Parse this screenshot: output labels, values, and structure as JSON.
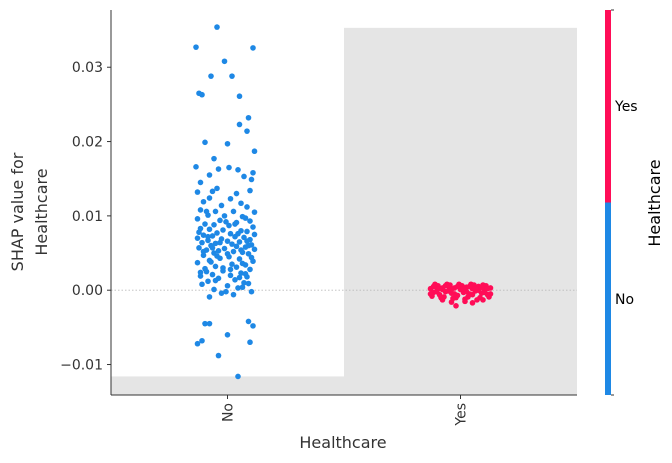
{
  "chart_data": {
    "type": "scatter",
    "title": "",
    "xlabel": "Healthcare",
    "ylabel_lines": [
      "SHAP value for",
      "Healthcare"
    ],
    "categories": [
      "No",
      "Yes"
    ],
    "ylim": [
      -0.0141,
      0.0377
    ],
    "yticks": [
      -0.01,
      0.0,
      0.01,
      0.02,
      0.03
    ],
    "ytick_labels": [
      "−0.01",
      "0.00",
      "0.01",
      "0.02",
      "0.03"
    ],
    "zero_line": true,
    "histogram_bands": [
      {
        "category": "No",
        "from": -0.0141,
        "to": -0.0116
      },
      {
        "category": "Yes",
        "from": -0.0141,
        "to": 0.0353
      }
    ],
    "colorbar": {
      "title": "Healthcare",
      "labels": [
        "Yes",
        "No"
      ],
      "high_color": "#ff0d57",
      "low_color": "#1e88e5"
    },
    "series": [
      {
        "category": "No",
        "color": "#1e88e5",
        "points": [
          [
            -0.035,
            0.0354
          ],
          [
            -0.105,
            0.0327
          ],
          [
            0.085,
            0.0326
          ],
          [
            -0.01,
            0.0308
          ],
          [
            -0.055,
            0.0288
          ],
          [
            0.015,
            0.0288
          ],
          [
            0.04,
            0.0261
          ],
          [
            -0.095,
            0.0265
          ],
          [
            -0.085,
            0.0263
          ],
          [
            0.07,
            0.0232
          ],
          [
            0.04,
            0.0223
          ],
          [
            0.065,
            0.0214
          ],
          [
            -0.075,
            0.0199
          ],
          [
            0.0,
            0.0197
          ],
          [
            0.09,
            0.0187
          ],
          [
            -0.045,
            0.0177
          ],
          [
            -0.105,
            0.0166
          ],
          [
            0.005,
            0.0165
          ],
          [
            -0.03,
            0.0163
          ],
          [
            0.035,
            0.0162
          ],
          [
            0.085,
            0.0158
          ],
          [
            -0.06,
            0.0155
          ],
          [
            0.055,
            0.0153
          ],
          [
            0.08,
            0.0149
          ],
          [
            -0.09,
            0.0145
          ],
          [
            -0.035,
            0.0137
          ],
          [
            0.075,
            0.0134
          ],
          [
            -0.1,
            0.0132
          ],
          [
            -0.05,
            0.0133
          ],
          [
            0.03,
            0.013
          ],
          [
            -0.06,
            0.0124
          ],
          [
            0.01,
            0.0123
          ],
          [
            -0.08,
            0.0119
          ],
          [
            0.045,
            0.0117
          ],
          [
            -0.02,
            0.0114
          ],
          [
            0.065,
            0.0112
          ],
          [
            -0.09,
            0.0108
          ],
          [
            -0.04,
            0.0106
          ],
          [
            0.02,
            0.0106
          ],
          [
            0.09,
            0.0105
          ],
          [
            -0.065,
            0.0101
          ],
          [
            -0.01,
            0.01
          ],
          [
            0.05,
            0.0099
          ],
          [
            -0.1,
            0.0096
          ],
          [
            -0.025,
            0.0094
          ],
          [
            0.075,
            0.0093
          ],
          [
            0.03,
            0.0091
          ],
          [
            -0.075,
            0.0089
          ],
          [
            -0.045,
            0.0088
          ],
          [
            0.005,
            0.0087
          ],
          [
            0.085,
            0.0085
          ],
          [
            -0.09,
            0.0083
          ],
          [
            -0.06,
            0.0082
          ],
          [
            -0.015,
            0.0081
          ],
          [
            0.045,
            0.008
          ],
          [
            0.065,
            0.0079
          ],
          [
            -0.035,
            0.0077
          ],
          [
            0.01,
            0.0076
          ],
          [
            0.09,
            0.0075
          ],
          [
            -0.08,
            0.0074
          ],
          [
            -0.05,
            0.0073
          ],
          [
            0.025,
            0.0072
          ],
          [
            0.055,
            0.0071
          ],
          [
            -0.1,
            0.007
          ],
          [
            -0.02,
            0.0069
          ],
          [
            0.075,
            0.0068
          ],
          [
            -0.065,
            0.0067
          ],
          [
            0.0,
            0.0066
          ],
          [
            0.04,
            0.0065
          ],
          [
            -0.085,
            0.0064
          ],
          [
            -0.04,
            0.0063
          ],
          [
            0.015,
            0.0062
          ],
          [
            0.08,
            0.0061
          ],
          [
            -0.055,
            0.006
          ],
          [
            0.03,
            0.0059
          ],
          [
            0.06,
            0.0058
          ],
          [
            -0.095,
            0.0057
          ],
          [
            -0.01,
            0.0056
          ],
          [
            0.09,
            0.0055
          ],
          [
            -0.07,
            0.0054
          ],
          [
            -0.03,
            0.0053
          ],
          [
            0.02,
            0.0052
          ],
          [
            0.05,
            0.0051
          ],
          [
            -0.045,
            0.005
          ],
          [
            0.07,
            0.0049
          ],
          [
            -0.08,
            0.0047
          ],
          [
            0.005,
            0.0045
          ],
          [
            -0.025,
            0.0043
          ],
          [
            0.04,
            0.0042
          ],
          [
            -0.06,
            0.004
          ],
          [
            0.085,
            0.0039
          ],
          [
            -0.1,
            0.0037
          ],
          [
            0.015,
            0.0035
          ],
          [
            0.06,
            0.0034
          ],
          [
            -0.04,
            0.0032
          ],
          [
            0.03,
            0.0031
          ],
          [
            -0.075,
            0.0029
          ],
          [
            0.075,
            0.0028
          ],
          [
            -0.015,
            0.0026
          ],
          [
            -0.09,
            0.0024
          ],
          [
            0.045,
            0.0023
          ],
          [
            -0.05,
            0.0021
          ],
          [
            0.01,
            0.002
          ],
          [
            0.065,
            0.0018
          ],
          [
            -0.03,
            0.0016
          ],
          [
            0.025,
            0.0014
          ],
          [
            -0.065,
            0.0012
          ],
          [
            0.055,
            0.001
          ],
          [
            -0.085,
            0.0008
          ],
          [
            0.0,
            0.0006
          ],
          [
            0.035,
            0.0003
          ],
          [
            -0.045,
            0.0001
          ],
          [
            0.08,
            -0.0002
          ],
          [
            -0.02,
            -0.0004
          ],
          [
            0.02,
            -0.0006
          ],
          [
            -0.06,
            -0.0009
          ],
          [
            0.05,
            0.0004
          ],
          [
            -0.005,
            -0.0002
          ],
          [
            -0.075,
            -0.0045
          ],
          [
            -0.06,
            -0.0045
          ],
          [
            0.07,
            -0.0042
          ],
          [
            0.085,
            -0.0048
          ],
          [
            0.0,
            -0.006
          ],
          [
            -0.085,
            -0.0068
          ],
          [
            -0.1,
            -0.0072
          ],
          [
            0.075,
            -0.007
          ],
          [
            -0.03,
            -0.0088
          ],
          [
            0.035,
            -0.0116
          ],
          [
            -0.07,
            0.0106
          ],
          [
            0.06,
            0.0097
          ],
          [
            -0.005,
            0.0092
          ],
          [
            0.025,
            0.0089
          ],
          [
            -0.095,
            0.0078
          ],
          [
            0.035,
            0.0076
          ],
          [
            -0.065,
            0.0072
          ],
          [
            0.065,
            0.0066
          ],
          [
            -0.025,
            0.0064
          ],
          [
            0.07,
            0.006
          ],
          [
            -0.05,
            0.0057
          ],
          [
            0.045,
            0.0054
          ],
          [
            -0.08,
            0.0052
          ],
          [
            0.0,
            0.0049
          ],
          [
            -0.035,
            0.0046
          ],
          [
            0.08,
            0.0044
          ],
          [
            -0.055,
            0.0038
          ],
          [
            0.05,
            0.0036
          ],
          [
            -0.015,
            0.003
          ],
          [
            0.01,
            0.0028
          ],
          [
            -0.07,
            0.0025
          ],
          [
            0.06,
            0.0022
          ],
          [
            -0.09,
            0.0019
          ],
          [
            0.04,
            0.0017
          ],
          [
            -0.04,
            0.0013
          ],
          [
            0.07,
            0.0009
          ]
        ]
      },
      {
        "category": "Yes",
        "color": "#ff0d57",
        "points": [
          [
            -0.1,
            0.0002
          ],
          [
            -0.09,
            -0.0003
          ],
          [
            -0.08,
            0.0004
          ],
          [
            -0.07,
            -0.0006
          ],
          [
            -0.06,
            0.0001
          ],
          [
            -0.05,
            -0.0002
          ],
          [
            -0.04,
            0.0005
          ],
          [
            -0.03,
            -0.0004
          ],
          [
            -0.02,
            0.0003
          ],
          [
            -0.01,
            -0.0007
          ],
          [
            0.0,
            0.0001
          ],
          [
            0.01,
            -0.0003
          ],
          [
            0.02,
            0.0004
          ],
          [
            0.03,
            -0.0005
          ],
          [
            0.04,
            0.0002
          ],
          [
            0.05,
            -0.0001
          ],
          [
            0.06,
            0.0005
          ],
          [
            0.07,
            -0.0004
          ],
          [
            0.08,
            0.0001
          ],
          [
            0.09,
            -0.0006
          ],
          [
            0.1,
            0.0003
          ],
          [
            -0.095,
            -0.0008
          ],
          [
            -0.075,
            0.0006
          ],
          [
            -0.055,
            -0.0009
          ],
          [
            -0.035,
            0.0007
          ],
          [
            -0.015,
            -0.001
          ],
          [
            0.005,
            0.0006
          ],
          [
            0.025,
            -0.0009
          ],
          [
            0.045,
            0.0007
          ],
          [
            0.065,
            -0.001
          ],
          [
            0.085,
            0.0006
          ],
          [
            -0.085,
            0.0008
          ],
          [
            -0.065,
            -0.001
          ],
          [
            -0.045,
            0.0008
          ],
          [
            -0.025,
            -0.0011
          ],
          [
            -0.005,
            0.0008
          ],
          [
            0.015,
            -0.0012
          ],
          [
            0.035,
            0.0008
          ],
          [
            0.055,
            -0.0013
          ],
          [
            0.075,
            0.0007
          ],
          [
            0.095,
            -0.0009
          ],
          [
            -0.1,
            -0.0005
          ],
          [
            -0.08,
            -0.0002
          ],
          [
            -0.06,
            0.0003
          ],
          [
            -0.04,
            -0.0001
          ],
          [
            -0.02,
            -0.0005
          ],
          [
            0.0,
            0.0004
          ],
          [
            0.02,
            -0.0002
          ],
          [
            0.04,
            -0.0006
          ],
          [
            0.06,
            0.0
          ],
          [
            0.08,
            -0.0003
          ],
          [
            0.1,
            -0.0005
          ],
          [
            -0.09,
            0.0005
          ],
          [
            -0.07,
            0.0002
          ],
          [
            -0.05,
            0.0006
          ],
          [
            -0.03,
            0.0001
          ],
          [
            -0.01,
            0.0005
          ],
          [
            0.01,
            0.0002
          ],
          [
            0.03,
            0.0005
          ],
          [
            0.05,
            0.0002
          ],
          [
            0.07,
            0.0004
          ],
          [
            0.09,
            0.0002
          ],
          [
            -0.03,
            -0.0016
          ],
          [
            0.04,
            -0.0017
          ],
          [
            -0.06,
            -0.0013
          ],
          [
            0.015,
            -0.0015
          ],
          [
            -0.015,
            -0.0021
          ],
          [
            0.075,
            -0.0013
          ]
        ]
      }
    ]
  }
}
